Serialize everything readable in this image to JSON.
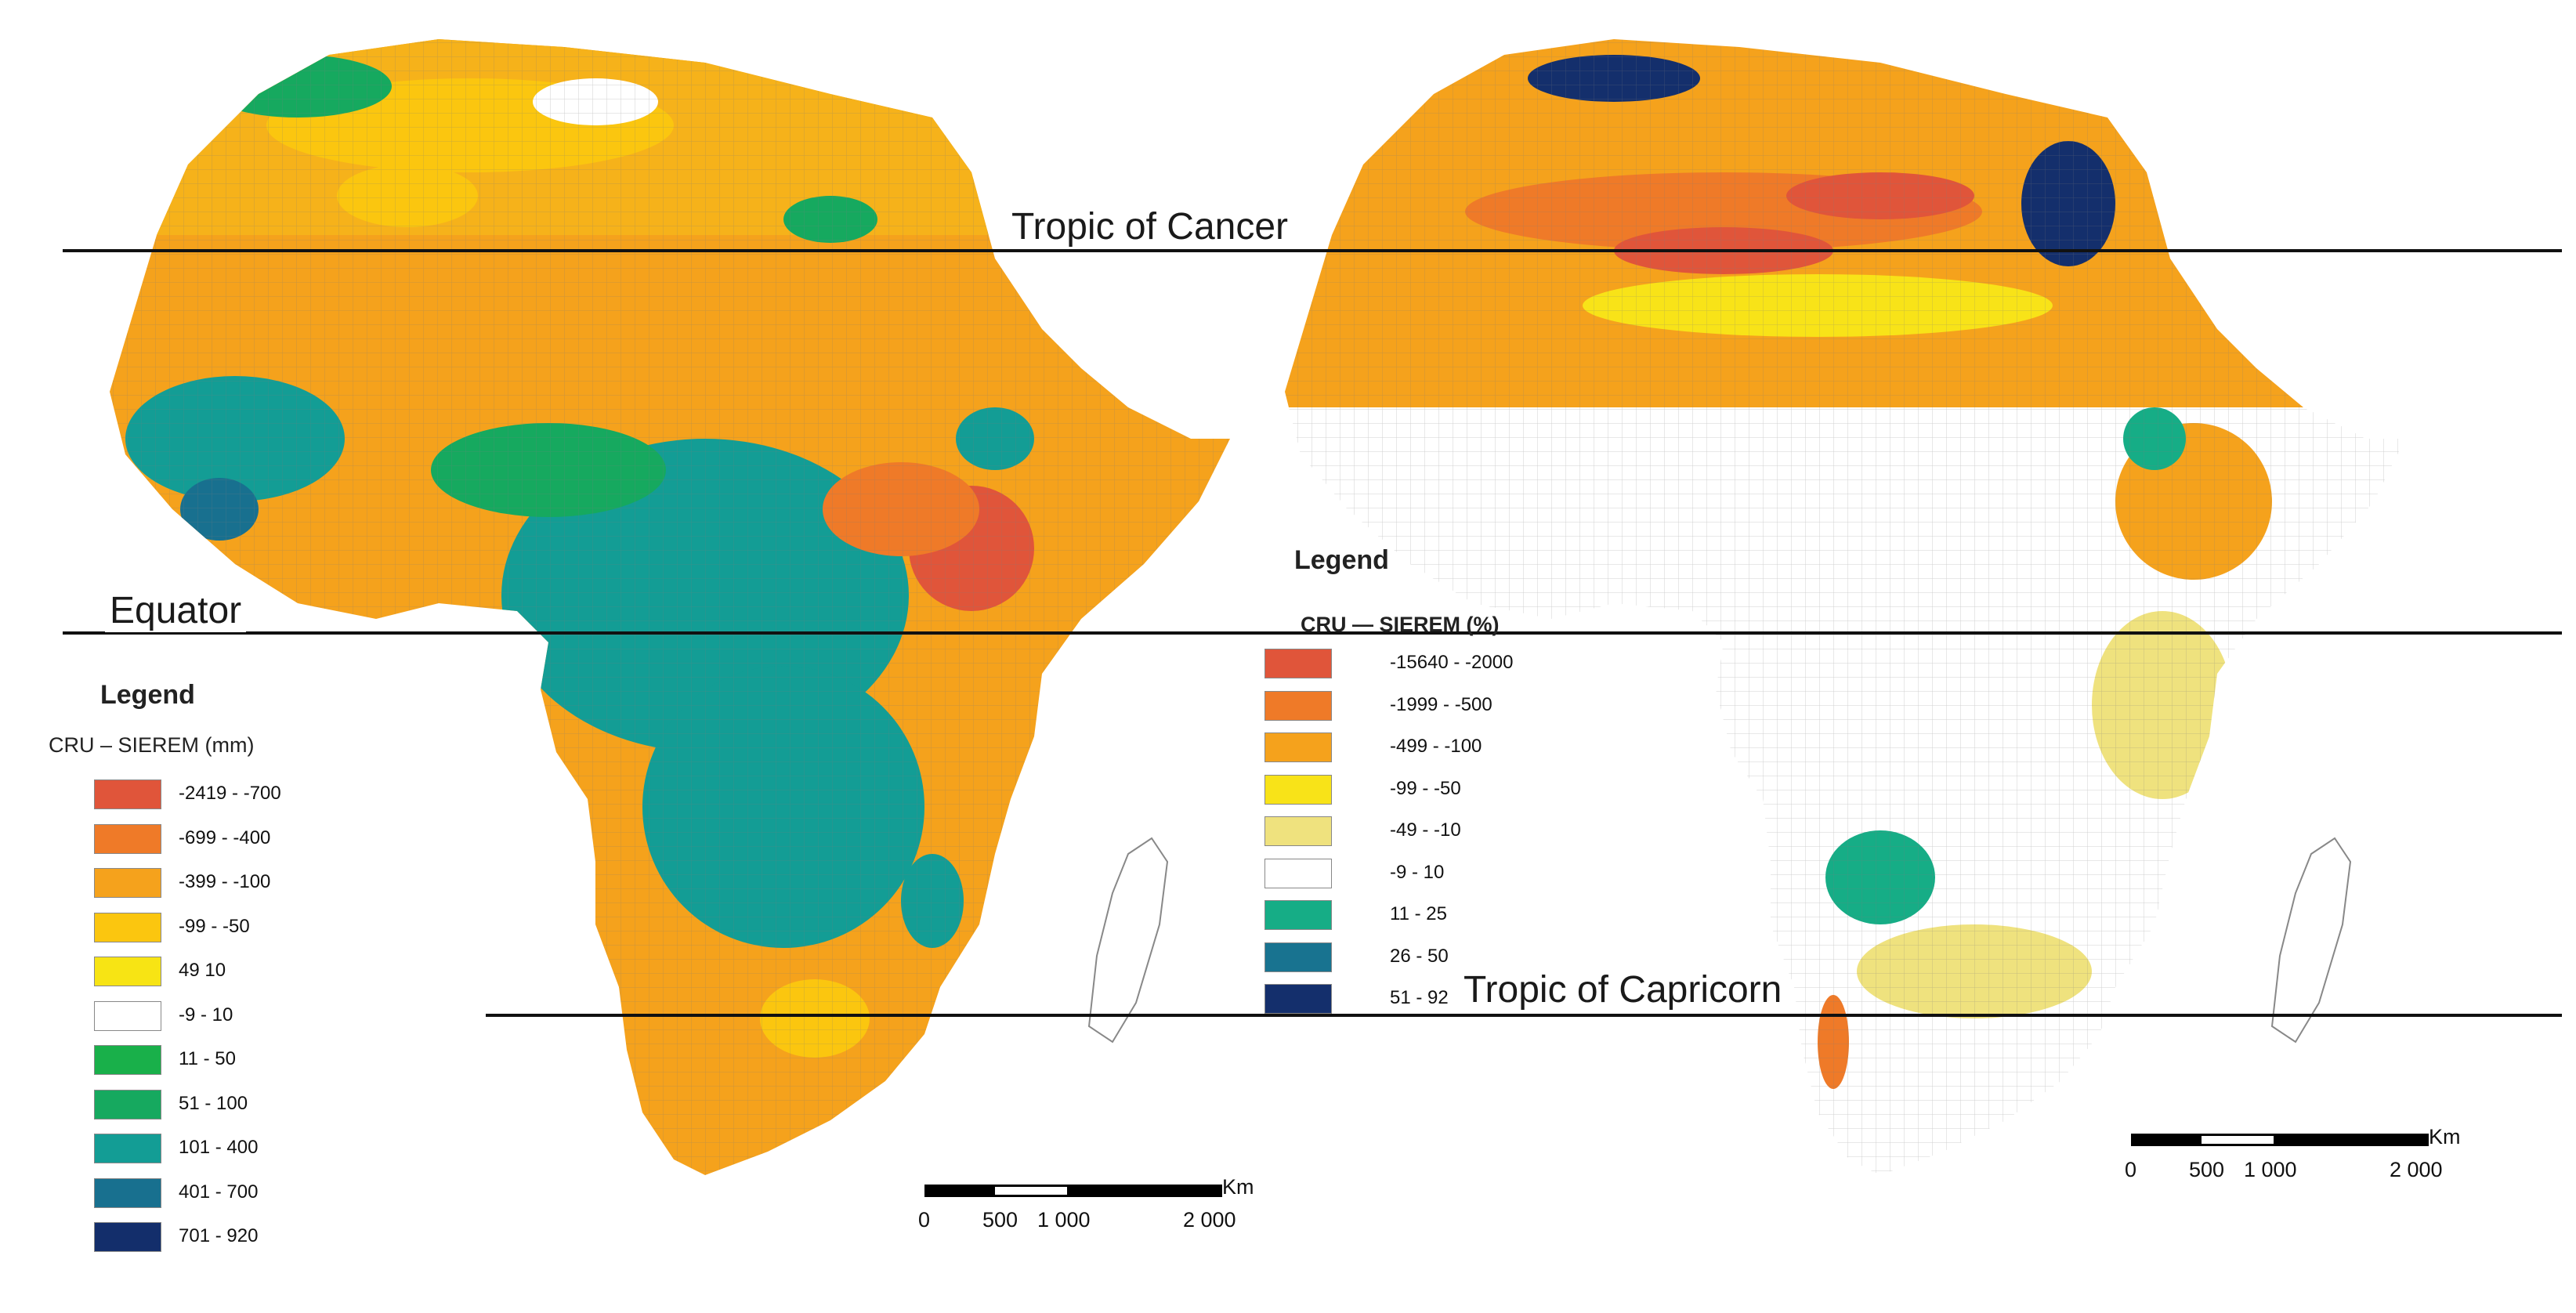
{
  "reference_lines": {
    "tropic_of_cancer": "Tropic of Cancer",
    "equator": "Equator",
    "tropic_of_capricorn": "Tropic of Capricorn"
  },
  "left_map": {
    "legend": {
      "title": "Legend",
      "subtitle": "CRU – SIEREM (mm)",
      "classes": [
        {
          "label": "-2419 - -700",
          "color": "#e0553a"
        },
        {
          "label": "-699 - -400",
          "color": "#ef7a28"
        },
        {
          "label": "-399 - -100",
          "color": "#f5a21c"
        },
        {
          "label": "-99 - -50",
          "color": "#fbc60f"
        },
        {
          "label": "49  10",
          "color": "#f7e414"
        },
        {
          "label": "-9 - 10",
          "color": "#ffffff"
        },
        {
          "label": "11 - 50",
          "color": "#19b04a"
        },
        {
          "label": "51 - 100",
          "color": "#16a95f"
        },
        {
          "label": "101 - 400",
          "color": "#139d95"
        },
        {
          "label": "401 - 700",
          "color": "#18708f"
        },
        {
          "label": "701 - 920",
          "color": "#132e6b"
        }
      ]
    },
    "scalebar": {
      "unit": "Km",
      "ticks": [
        "0",
        "500",
        "1 000",
        "2 000"
      ]
    }
  },
  "right_map": {
    "legend": {
      "title": "Legend",
      "subtitle": "CRU — SIEREM (%)",
      "classes": [
        {
          "label": "-15640 - -2000",
          "color": "#e0553a"
        },
        {
          "label": "-1999 - -500",
          "color": "#ef7a28"
        },
        {
          "label": "-499 - -100",
          "color": "#f5a21c"
        },
        {
          "label": "-99 - -50",
          "color": "#f8e318"
        },
        {
          "label": "-49 - -10",
          "color": "#efe27e"
        },
        {
          "label": "-9 - 10",
          "color": "#ffffff"
        },
        {
          "label": "11 - 25",
          "color": "#16ad86"
        },
        {
          "label": "26 - 50",
          "color": "#187390"
        },
        {
          "label": "51 - 92",
          "color": "#142f6c"
        }
      ]
    },
    "scalebar": {
      "unit": "Km",
      "ticks": [
        "0",
        "500",
        "1 000",
        "2 000"
      ]
    }
  }
}
